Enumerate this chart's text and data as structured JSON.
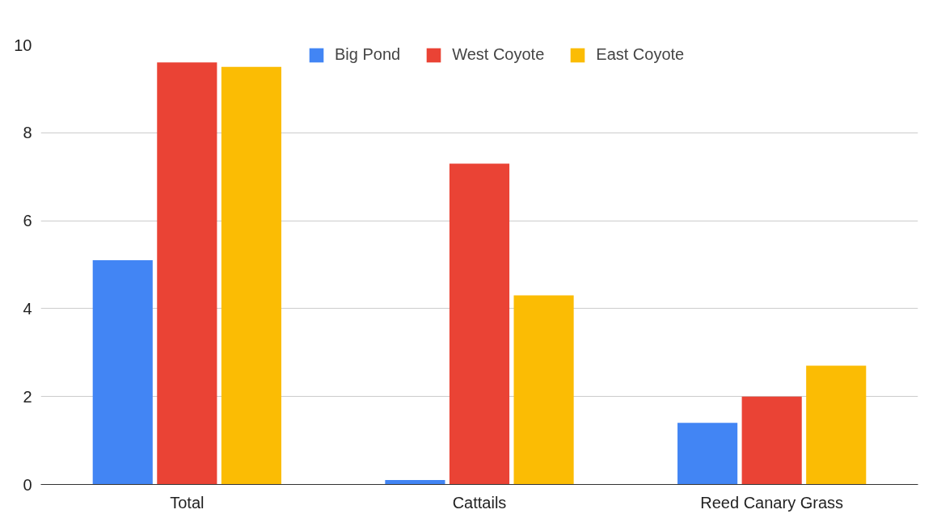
{
  "chart_data": {
    "type": "bar",
    "categories": [
      "Total",
      "Cattails",
      "Reed Canary Grass"
    ],
    "series": [
      {
        "name": "Big Pond",
        "color": "#4285f4",
        "values": [
          5.1,
          0.1,
          1.4
        ]
      },
      {
        "name": "West Coyote",
        "color": "#ea4335",
        "values": [
          9.6,
          7.3,
          2.0
        ]
      },
      {
        "name": "East Coyote",
        "color": "#fbbc04",
        "values": [
          9.5,
          4.3,
          2.7
        ]
      }
    ],
    "ylim": [
      0,
      10
    ],
    "yticks": [
      0,
      2,
      4,
      6,
      8,
      10
    ],
    "grid": "y",
    "legend": "top"
  }
}
